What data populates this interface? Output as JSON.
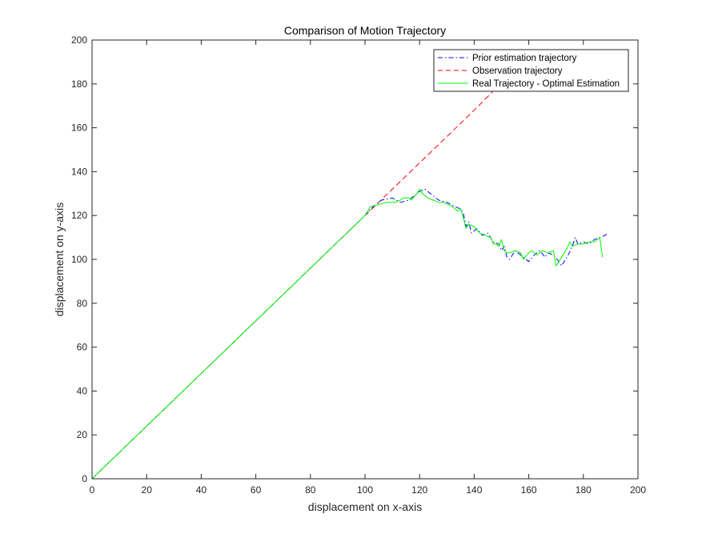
{
  "chart_data": {
    "type": "line",
    "title": "Comparison of Motion Trajectory",
    "xlabel": "displacement on x-axis",
    "ylabel": "displacement on y-axis",
    "xlim": [
      0,
      200
    ],
    "ylim": [
      0,
      200
    ],
    "xticks": [
      "0",
      "20",
      "40",
      "60",
      "80",
      "100",
      "120",
      "140",
      "160",
      "180",
      "200"
    ],
    "yticks": [
      "0",
      "20",
      "40",
      "60",
      "80",
      "100",
      "120",
      "140",
      "160",
      "180",
      "200"
    ],
    "legend_position": "top-right",
    "series": [
      {
        "name": "Prior estimation trajectory",
        "color": "#0000ff",
        "style": "dashdot",
        "points": [
          [
            0,
            0
          ],
          [
            100,
            120
          ],
          [
            103,
            124
          ],
          [
            106,
            127
          ],
          [
            110,
            128
          ],
          [
            113,
            126
          ],
          [
            116,
            127
          ],
          [
            118,
            129
          ],
          [
            120,
            131
          ],
          [
            122,
            132
          ],
          [
            124,
            130
          ],
          [
            127,
            127
          ],
          [
            130,
            126
          ],
          [
            133,
            124
          ],
          [
            135,
            123
          ],
          [
            136,
            121
          ],
          [
            137,
            115
          ],
          [
            138,
            117
          ],
          [
            139,
            112
          ],
          [
            141,
            114
          ],
          [
            143,
            111
          ],
          [
            145,
            112
          ],
          [
            147,
            108
          ],
          [
            149,
            107
          ],
          [
            150,
            104
          ],
          [
            151,
            106
          ],
          [
            152,
            101
          ],
          [
            153,
            100
          ],
          [
            155,
            104
          ],
          [
            157,
            102
          ],
          [
            158,
            101
          ],
          [
            160,
            99
          ],
          [
            162,
            102
          ],
          [
            164,
            104
          ],
          [
            166,
            101
          ],
          [
            167,
            103
          ],
          [
            169,
            102
          ],
          [
            171,
            99
          ],
          [
            172,
            97
          ],
          [
            174,
            101
          ],
          [
            176,
            106
          ],
          [
            177,
            110
          ],
          [
            178,
            107
          ],
          [
            180,
            108
          ],
          [
            182,
            107
          ],
          [
            184,
            109
          ],
          [
            186,
            110
          ],
          [
            188,
            111
          ],
          [
            189,
            112
          ]
        ]
      },
      {
        "name": "Observation trajectory",
        "color": "#ff0000",
        "style": "dashed",
        "points": [
          [
            0,
            0
          ],
          [
            140,
            168
          ],
          [
            148,
            178
          ]
        ]
      },
      {
        "name": "Real Trajectory - Optimal Estimation",
        "color": "#00ff00",
        "style": "solid",
        "points": [
          [
            0,
            0
          ],
          [
            100,
            120
          ],
          [
            102,
            124
          ],
          [
            105,
            125
          ],
          [
            108,
            126
          ],
          [
            111,
            126
          ],
          [
            113,
            127
          ],
          [
            114,
            128
          ],
          [
            116,
            128
          ],
          [
            117,
            127
          ],
          [
            119,
            130
          ],
          [
            120,
            132
          ],
          [
            121,
            130
          ],
          [
            123,
            128
          ],
          [
            125,
            127
          ],
          [
            127,
            126
          ],
          [
            129,
            126
          ],
          [
            132,
            124
          ],
          [
            134,
            122
          ],
          [
            135,
            123
          ],
          [
            136,
            119
          ],
          [
            137,
            114
          ],
          [
            138,
            116
          ],
          [
            140,
            115
          ],
          [
            142,
            112
          ],
          [
            144,
            111
          ],
          [
            146,
            110
          ],
          [
            147,
            107
          ],
          [
            148,
            107
          ],
          [
            149,
            106
          ],
          [
            150,
            109
          ],
          [
            151,
            104
          ],
          [
            152,
            103
          ],
          [
            153,
            103
          ],
          [
            155,
            104
          ],
          [
            157,
            103
          ],
          [
            158,
            100
          ],
          [
            160,
            103
          ],
          [
            161,
            104
          ],
          [
            163,
            102
          ],
          [
            165,
            104
          ],
          [
            167,
            103
          ],
          [
            169,
            104
          ],
          [
            170,
            97
          ],
          [
            172,
            101
          ],
          [
            174,
            105
          ],
          [
            175,
            108
          ],
          [
            176,
            106
          ],
          [
            178,
            107
          ],
          [
            180,
            107
          ],
          [
            182,
            108
          ],
          [
            184,
            108
          ],
          [
            186,
            110
          ],
          [
            187,
            101
          ]
        ]
      }
    ]
  }
}
